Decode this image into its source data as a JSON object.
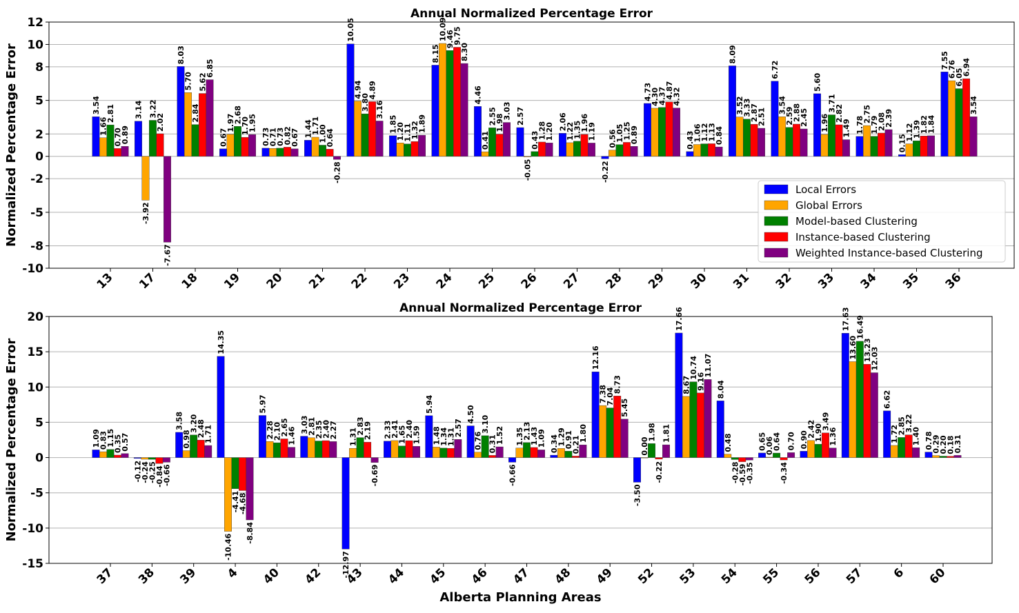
{
  "colors": {
    "local": "#0000ff",
    "global": "#ffa500",
    "model": "#008000",
    "instance": "#ff0000",
    "weighted": "#800080"
  },
  "chart_data": [
    {
      "type": "bar",
      "title": "Annual Normalized Percentage Error",
      "xlabel": "",
      "ylabel": "Normalized Percentage Error",
      "ylim": [
        -10,
        12
      ],
      "yticks": [
        "-10",
        "-8",
        "-5",
        "-2",
        "0",
        "2",
        "5",
        "8",
        "10",
        "12"
      ],
      "grid": "horizontal",
      "legend_position": "lower-right",
      "categories": [
        "13",
        "17",
        "18",
        "19",
        "20",
        "21",
        "22",
        "23",
        "24",
        "25",
        "26",
        "27",
        "28",
        "29",
        "30",
        "31",
        "32",
        "33",
        "34",
        "35",
        "36"
      ],
      "series": [
        {
          "name": "Local Errors",
          "color": "#0000ff",
          "values": [
            3.54,
            3.14,
            8.03,
            0.67,
            0.73,
            1.44,
            10.05,
            1.85,
            8.15,
            4.46,
            2.57,
            2.06,
            -0.22,
            4.73,
            0.43,
            8.09,
            6.72,
            5.6,
            1.78,
            0.15,
            7.55
          ]
        },
        {
          "name": "Global Errors",
          "color": "#ffa500",
          "values": [
            1.66,
            -3.92,
            5.7,
            1.97,
            0.71,
            1.71,
            4.94,
            1.2,
            10.09,
            0.41,
            -0.05,
            1.22,
            0.56,
            4.3,
            1.06,
            3.52,
            3.54,
            1.96,
            2.75,
            1.12,
            6.76
          ]
        },
        {
          "name": "Model-based Clustering",
          "color": "#008000",
          "values": [
            2.81,
            3.22,
            2.84,
            2.68,
            0.73,
            1.0,
            3.8,
            1.11,
            9.46,
            2.55,
            0.43,
            1.35,
            1.05,
            4.37,
            1.12,
            3.33,
            2.59,
            3.71,
            1.79,
            1.39,
            6.05
          ]
        },
        {
          "name": "Instance-based Clustering",
          "color": "#ff0000",
          "values": [
            0.7,
            2.02,
            5.62,
            1.7,
            0.82,
            0.64,
            4.89,
            1.32,
            9.75,
            1.98,
            1.28,
            1.96,
            1.25,
            4.87,
            1.13,
            2.87,
            2.88,
            2.82,
            2.08,
            1.82,
            6.94
          ]
        },
        {
          "name": "Weighted Instance-based Clustering",
          "color": "#800080",
          "values": [
            0.89,
            -7.67,
            6.85,
            1.95,
            0.67,
            -0.28,
            3.16,
            1.89,
            8.3,
            3.03,
            1.2,
            1.19,
            0.89,
            4.32,
            0.84,
            2.51,
            2.45,
            1.49,
            2.39,
            1.84,
            3.54
          ]
        }
      ],
      "data_labels": [
        [
          "3.54",
          "3.14",
          "8.03",
          "0.67",
          "0.73",
          "1.44",
          "10.05",
          "1.85",
          "8.15",
          "4.46",
          "2.57",
          "2.06",
          "-0.22",
          "4.73",
          "0.43",
          "8.09",
          "6.72",
          "5.60",
          "1.78",
          "0.15",
          "7.55"
        ],
        [
          "1.66",
          "-3.92",
          "5.70",
          "1.97",
          "0.71",
          "1.71",
          "4.94",
          "1.20",
          "10.09",
          "0.41",
          "-0.05",
          "1.22",
          "0.56",
          "4.30",
          "1.06",
          "3.52",
          "3.54",
          "1.96",
          "2.75",
          "1.12",
          "6.76"
        ],
        [
          "2.81",
          "3.22",
          "2.84",
          "2.68",
          "0.73",
          "1.00",
          "3.80",
          "1.11",
          "9.46",
          "2.55",
          "0.43",
          "1.35",
          "1.05",
          "4.37",
          "1.12",
          "3.33",
          "2.59",
          "3.71",
          "1.79",
          "1.39",
          "6.05"
        ],
        [
          "0.70",
          "2.02",
          "5.62",
          "1.70",
          "0.82",
          "0.64",
          "4.89",
          "1.32",
          "9.75",
          "1.98",
          "1.28",
          "1.96",
          "1.25",
          "4.87",
          "1.13",
          "2.87",
          "2.88",
          "2.82",
          "2.08",
          "1.82",
          "6.94"
        ],
        [
          "0.89",
          "-7.67",
          "6.85",
          "1.95",
          "0.67",
          "-0.28",
          "3.16",
          "1.89",
          "8.30",
          "3.03",
          "1.20",
          "1.19",
          "0.89",
          "4.32",
          "0.84",
          "2.51",
          "2.45",
          "1.49",
          "2.39",
          "1.84",
          "3.54"
        ]
      ]
    },
    {
      "type": "bar",
      "title": "Annual Normalized Percentage Error",
      "xlabel": "Alberta Planning Areas",
      "ylabel": "Normalized Percentage Error",
      "ylim": [
        -15,
        20
      ],
      "yticks": [
        "-15",
        "-10",
        "-5",
        "0",
        "5",
        "10",
        "15",
        "20"
      ],
      "grid": "horizontal",
      "categories": [
        "37",
        "38",
        "39",
        "4",
        "40",
        "42",
        "43",
        "44",
        "45",
        "46",
        "47",
        "48",
        "49",
        "52",
        "53",
        "54",
        "55",
        "56",
        "57",
        "6",
        "60"
      ],
      "series": [
        {
          "name": "Local Errors",
          "color": "#0000ff",
          "values": [
            1.09,
            -0.12,
            3.58,
            14.35,
            5.97,
            3.03,
            -12.97,
            2.33,
            5.94,
            4.5,
            -0.66,
            0.34,
            12.16,
            -3.5,
            17.66,
            8.04,
            0.65,
            0.9,
            17.63,
            6.62,
            0.78
          ]
        },
        {
          "name": "Global Errors",
          "color": "#ffa500",
          "values": [
            0.83,
            -0.24,
            0.98,
            -10.46,
            2.28,
            2.81,
            1.31,
            2.41,
            1.48,
            0.76,
            1.35,
            1.29,
            7.38,
            0.0,
            8.67,
            0.48,
            0.06,
            2.42,
            13.6,
            1.72,
            0.29
          ]
        },
        {
          "name": "Model-based Clustering",
          "color": "#008000",
          "values": [
            1.15,
            -0.25,
            3.2,
            -4.41,
            2.1,
            2.35,
            2.83,
            1.65,
            1.34,
            3.1,
            2.13,
            0.91,
            7.04,
            1.98,
            10.74,
            -0.28,
            0.64,
            1.9,
            16.49,
            2.85,
            0.2
          ]
        },
        {
          "name": "Instance-based Clustering",
          "color": "#ff0000",
          "values": [
            0.35,
            -0.84,
            2.48,
            -4.68,
            2.65,
            2.4,
            2.19,
            2.4,
            1.31,
            0.31,
            1.43,
            0.21,
            8.73,
            -0.22,
            9.16,
            -0.59,
            -0.34,
            3.49,
            13.23,
            3.22,
            0.18
          ]
        },
        {
          "name": "Weighted Instance-based Clustering",
          "color": "#800080",
          "values": [
            0.57,
            -0.66,
            1.71,
            -8.84,
            1.46,
            2.27,
            -0.69,
            1.59,
            2.57,
            1.52,
            1.09,
            1.8,
            5.45,
            1.81,
            11.07,
            -0.35,
            0.7,
            1.36,
            12.03,
            1.4,
            0.31
          ]
        }
      ],
      "data_labels": [
        [
          "1.09",
          "-0.12",
          "3.58",
          "14.35",
          "5.97",
          "3.03",
          "-12.97",
          "2.33",
          "5.94",
          "4.50",
          "-0.66",
          "0.34",
          "12.16",
          "-3.50",
          "17.66",
          "8.04",
          "0.65",
          "0.90",
          "17.63",
          "6.62",
          "0.78"
        ],
        [
          "0.83",
          "-0.24",
          "0.98",
          "-10.46",
          "2.28",
          "2.81",
          "1.31",
          "2.41",
          "1.48",
          "0.76",
          "1.35",
          "1.29",
          "7.38",
          "0.00",
          "8.67",
          "0.48",
          "0.06",
          "2.42",
          "13.60",
          "1.72",
          "0.29"
        ],
        [
          "1.15",
          "-0.25",
          "3.20",
          "-4.41",
          "2.10",
          "2.35",
          "2.83",
          "1.65",
          "1.34",
          "3.10",
          "2.13",
          "0.91",
          "7.04",
          "1.98",
          "10.74",
          "-0.28",
          "0.64",
          "1.90",
          "16.49",
          "2.85",
          "0.20"
        ],
        [
          "0.35",
          "-0.84",
          "2.48",
          "-4.68",
          "2.65",
          "2.40",
          "2.19",
          "2.40",
          "1.31",
          "0.31",
          "1.43",
          "0.21",
          "8.73",
          "-0.22",
          "9.16",
          "-0.59",
          "-0.34",
          "3.49",
          "13.23",
          "3.22",
          "0.18"
        ],
        [
          "0.57",
          "-0.66",
          "1.71",
          "-8.84",
          "1.46",
          "2.27",
          "-0.69",
          "1.59",
          "2.57",
          "1.52",
          "1.09",
          "1.80",
          "5.45",
          "1.81",
          "11.07",
          "-0.35",
          "0.70",
          "1.36",
          "12.03",
          "1.40",
          "0.31"
        ]
      ]
    }
  ]
}
